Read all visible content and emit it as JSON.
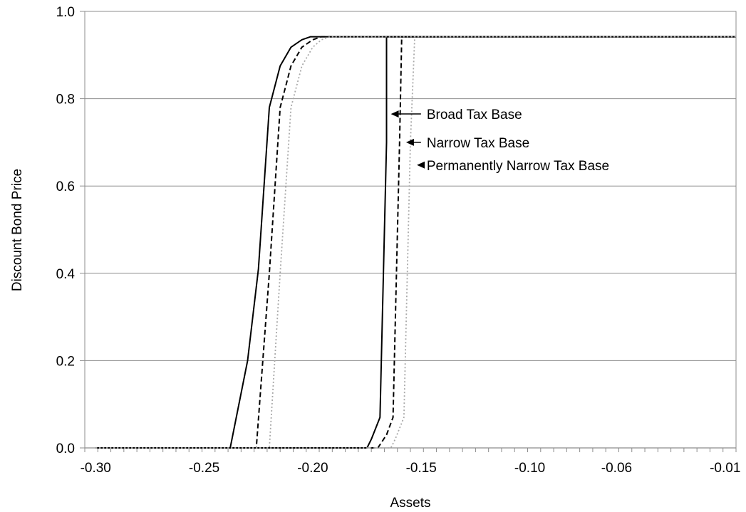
{
  "chart_data": {
    "type": "line",
    "title": "",
    "xlabel": "Assets",
    "ylabel": "Discount Bond Price",
    "xlim": [
      -0.305,
      -0.005
    ],
    "ylim": [
      0,
      1.0
    ],
    "grid": "horizontal",
    "x_ticks": [
      {
        "value": -0.3,
        "label": "-0.30"
      },
      {
        "value": -0.25,
        "label": "-0.25"
      },
      {
        "value": -0.2,
        "label": "-0.20"
      },
      {
        "value": -0.15,
        "label": "-0.15"
      },
      {
        "value": -0.1,
        "label": "-0.10"
      },
      {
        "value": -0.06,
        "label": "-0.06"
      },
      {
        "value": -0.01,
        "label": "-0.01"
      }
    ],
    "y_ticks": [
      {
        "value": 0.0,
        "label": "0.0"
      },
      {
        "value": 0.2,
        "label": "0.2"
      },
      {
        "value": 0.4,
        "label": "0.4"
      },
      {
        "value": 0.6,
        "label": "0.6"
      },
      {
        "value": 0.8,
        "label": "0.8"
      },
      {
        "value": 1.0,
        "label": "1.0"
      }
    ],
    "series": [
      {
        "name": "Broad Tax Base",
        "style": "solid",
        "color": "#000000",
        "segments": [
          {
            "x": [
              -0.3,
              -0.238,
              -0.23,
              -0.225,
              -0.22,
              -0.215,
              -0.21,
              -0.205,
              -0.201,
              -0.005
            ],
            "y": [
              0.0,
              0.0,
              0.2,
              0.41,
              0.78,
              0.875,
              0.918,
              0.935,
              0.942,
              0.942
            ]
          },
          {
            "x": [
              -0.3,
              -0.175,
              -0.173,
              -0.169,
              -0.166,
              -0.166,
              -0.005
            ],
            "y": [
              0.0,
              0.0,
              0.02,
              0.07,
              0.7,
              0.942,
              0.942
            ]
          }
        ]
      },
      {
        "name": "Narrow Tax Base",
        "style": "dashed",
        "color": "#000000",
        "segments": [
          {
            "x": [
              -0.3,
              -0.226,
              -0.22,
              -0.215,
              -0.21,
              -0.205,
              -0.2,
              -0.196,
              -0.005
            ],
            "y": [
              0.0,
              0.0,
              0.4,
              0.78,
              0.875,
              0.918,
              0.935,
              0.942,
              0.942
            ]
          },
          {
            "x": [
              -0.3,
              -0.17,
              -0.166,
              -0.163,
              -0.16,
              -0.159,
              -0.005
            ],
            "y": [
              0.0,
              0.0,
              0.03,
              0.07,
              0.7,
              0.942,
              0.942
            ]
          }
        ]
      },
      {
        "name": "Permanently Narrow Tax Base",
        "style": "dotted",
        "color": "#a8a8a8",
        "segments": [
          {
            "x": [
              -0.3,
              -0.22,
              -0.215,
              -0.21,
              -0.205,
              -0.2,
              -0.196,
              -0.192,
              -0.005
            ],
            "y": [
              0.0,
              0.0,
              0.4,
              0.78,
              0.875,
              0.918,
              0.935,
              0.942,
              0.942
            ]
          },
          {
            "x": [
              -0.3,
              -0.164,
              -0.162,
              -0.158,
              -0.155,
              -0.153,
              -0.005
            ],
            "y": [
              0.0,
              0.0,
              0.02,
              0.07,
              0.7,
              0.942,
              0.942
            ]
          }
        ]
      }
    ],
    "annotations": [
      {
        "text": "Broad Tax Base",
        "arrow_to": {
          "x": -0.164,
          "y": 0.765
        },
        "text_at": {
          "x": -0.1475,
          "y": 0.765
        }
      },
      {
        "text": "Narrow Tax Base",
        "arrow_to": {
          "x": -0.157,
          "y": 0.7
        },
        "text_at": {
          "x": -0.1475,
          "y": 0.7
        }
      },
      {
        "text": "Permanently Narrow Tax Base",
        "arrow_to": {
          "x": -0.152,
          "y": 0.648
        },
        "text_at": {
          "x": -0.1475,
          "y": 0.648
        }
      }
    ]
  }
}
